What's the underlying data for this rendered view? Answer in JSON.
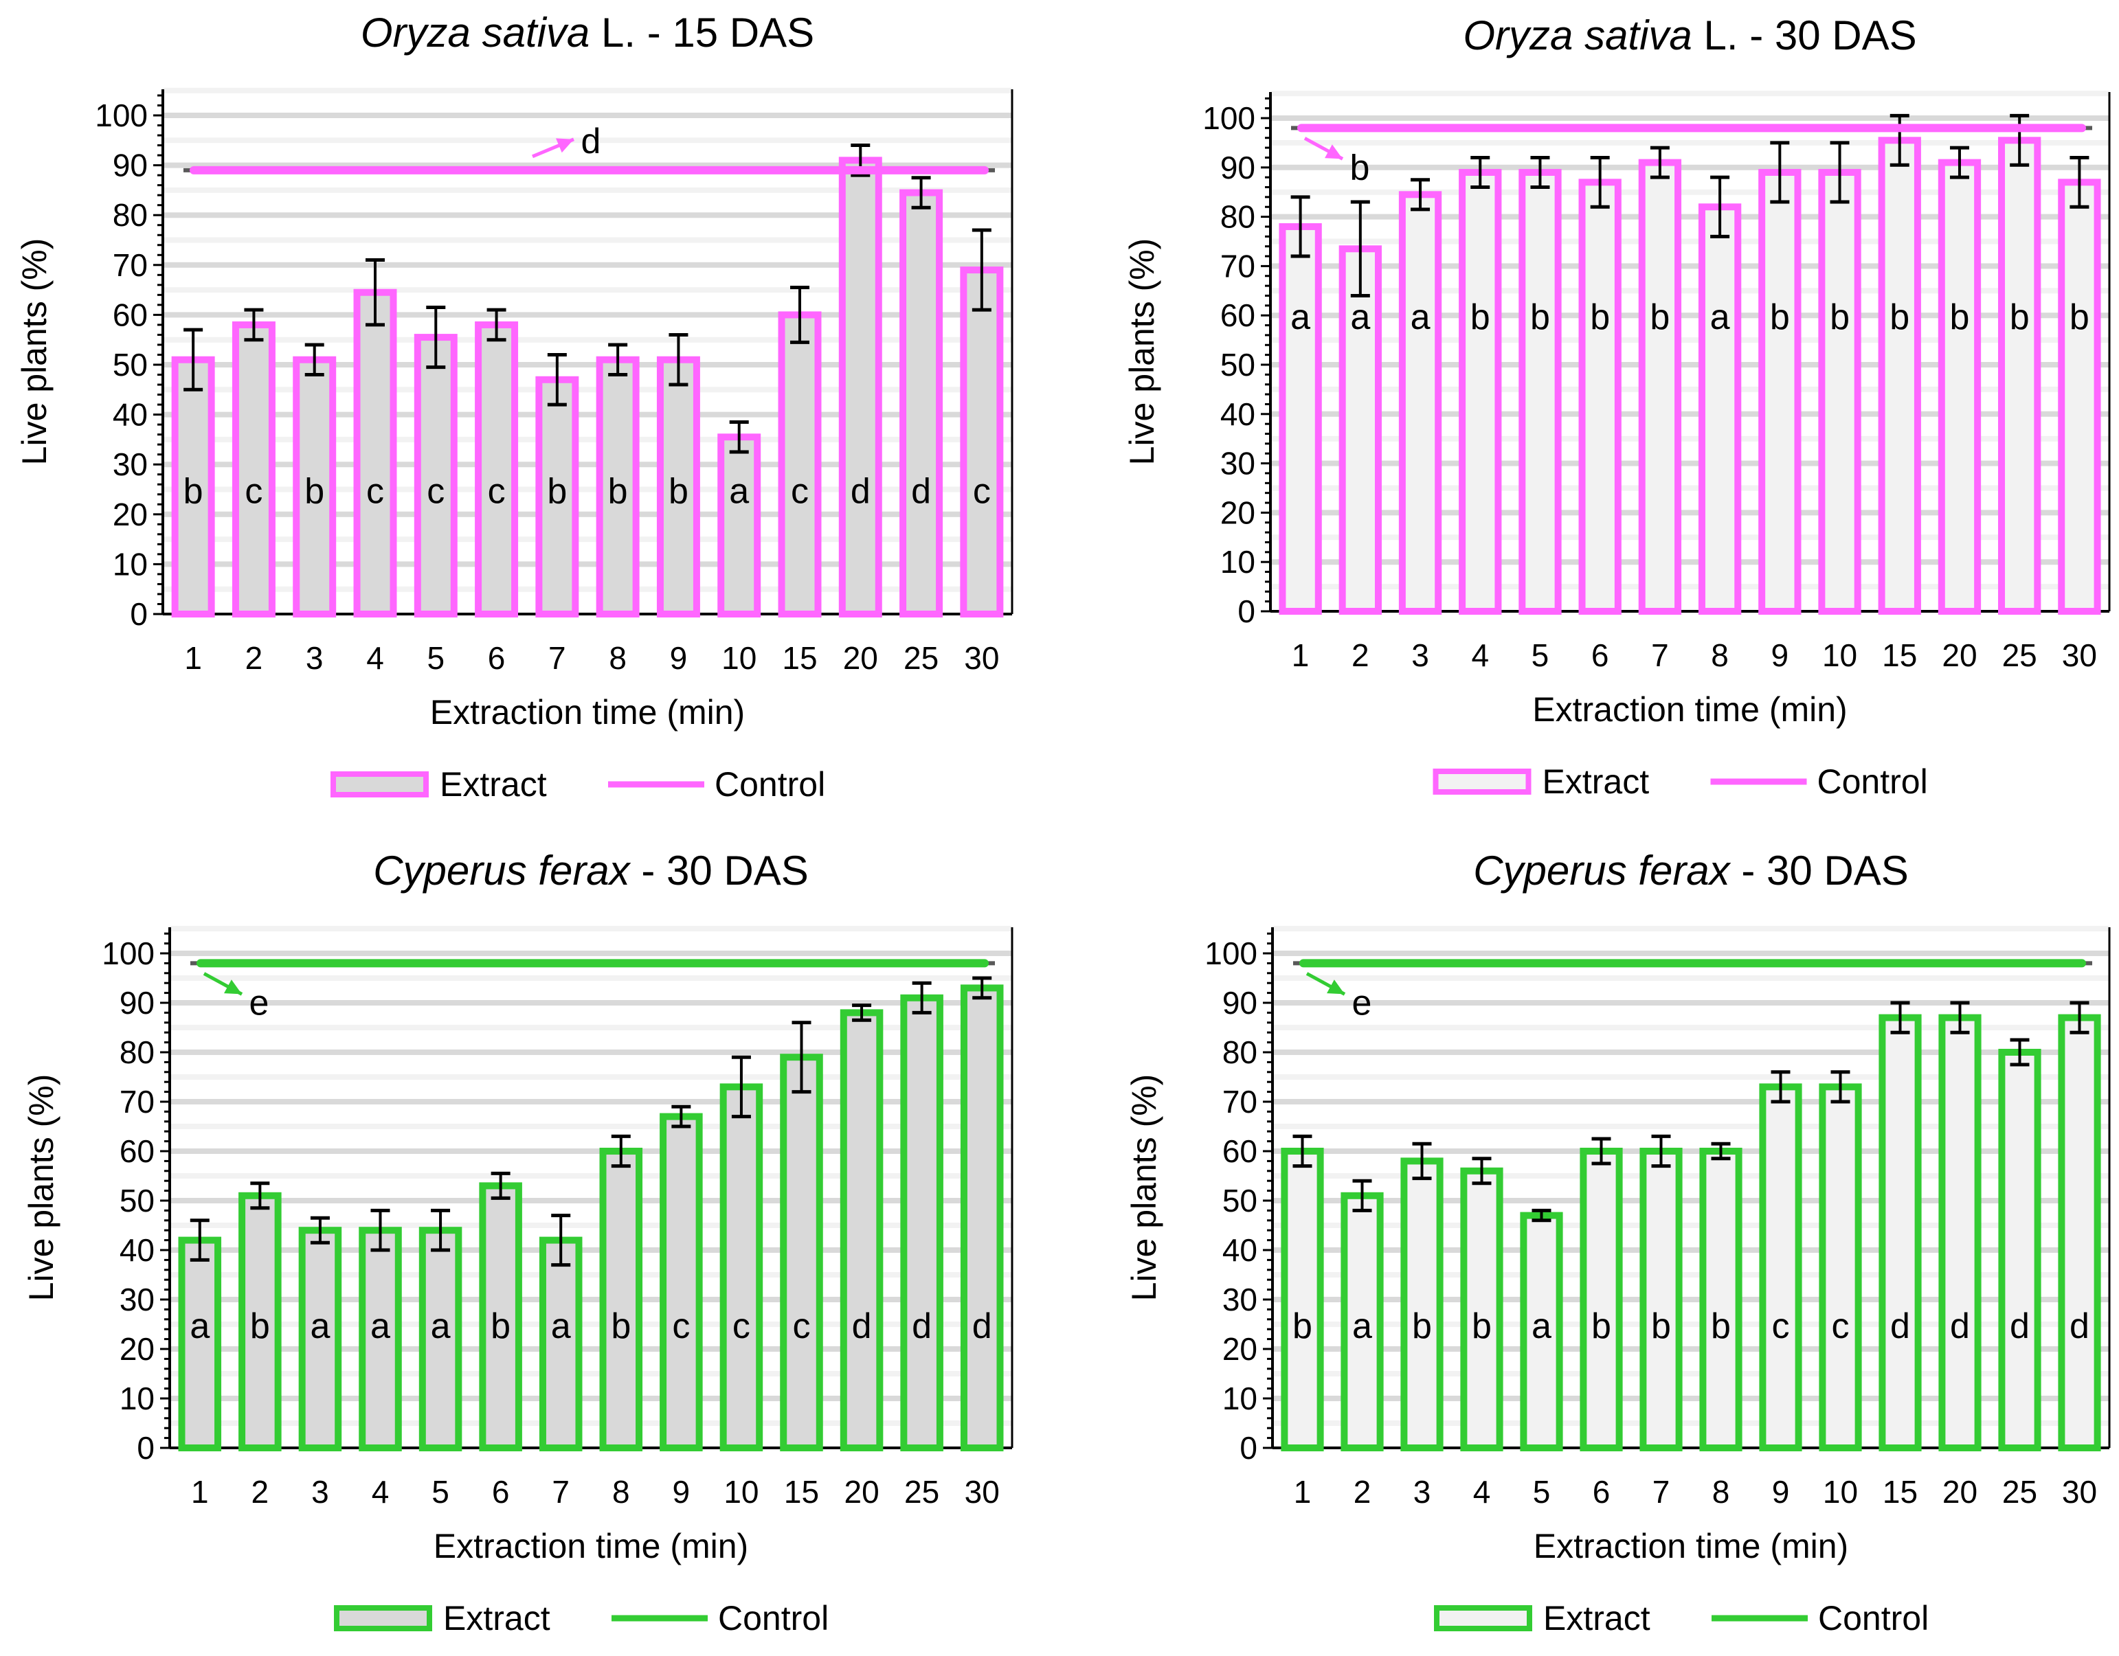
{
  "chart_data": [
    {
      "type": "bar",
      "title_species": "Oryza sativa",
      "title_suffix": " L. - 15 DAS",
      "xlabel": "Extraction time (min)",
      "ylabel": "Live plants (%)",
      "ylim": [
        0,
        100
      ],
      "yticks": [
        0,
        10,
        20,
        30,
        40,
        50,
        60,
        70,
        80,
        90,
        100
      ],
      "categories": [
        "1",
        "2",
        "3",
        "4",
        "5",
        "6",
        "7",
        "8",
        "9",
        "10",
        "15",
        "20",
        "25",
        "30"
      ],
      "values": [
        51,
        58,
        51,
        64.5,
        55.5,
        58,
        47,
        51,
        51,
        35.5,
        60,
        91,
        84.5,
        69
      ],
      "errors": [
        6,
        3,
        3,
        6.5,
        6,
        3,
        5,
        3,
        5,
        3,
        5.5,
        3,
        3,
        8
      ],
      "letters": [
        "b",
        "c",
        "b",
        "c",
        "c",
        "c",
        "b",
        "b",
        "b",
        "a",
        "c",
        "d",
        "d",
        "c"
      ],
      "control_value": 89,
      "control_letter": "d",
      "color": "#FF66FF",
      "fill": "#D9D9D9",
      "legend": [
        "Extract",
        "Control"
      ],
      "legend_placement": "bottom"
    },
    {
      "type": "bar",
      "title_species": "Oryza sativa",
      "title_suffix": " L. - 30 DAS",
      "xlabel": "Extraction time (min)",
      "ylabel": "Live plants (%)",
      "ylim": [
        0,
        100
      ],
      "yticks": [
        0,
        10,
        20,
        30,
        40,
        50,
        60,
        70,
        80,
        90,
        100
      ],
      "categories": [
        "1",
        "2",
        "3",
        "4",
        "5",
        "6",
        "7",
        "8",
        "9",
        "10",
        "15",
        "20",
        "25",
        "30"
      ],
      "values": [
        78,
        73.5,
        84.5,
        89,
        89,
        87,
        91,
        82,
        89,
        89,
        95.5,
        91,
        95.5,
        87
      ],
      "errors": [
        6,
        9.5,
        3,
        3,
        3,
        5,
        3,
        6,
        6,
        6,
        5,
        3,
        5,
        5
      ],
      "letters": [
        "a",
        "a",
        "a",
        "b",
        "b",
        "b",
        "b",
        "a",
        "b",
        "b",
        "b",
        "b",
        "b",
        "b"
      ],
      "control_value": 98,
      "control_letter": "b",
      "color": "#FF66FF",
      "fill": "#F2F2F2",
      "legend": [
        "Extract",
        "Control"
      ],
      "legend_placement": "bottom"
    },
    {
      "type": "bar",
      "title_species": "Cyperus ferax",
      "title_suffix": " - 30 DAS",
      "xlabel": "Extraction time (min)",
      "ylabel": "Live plants (%)",
      "ylim": [
        0,
        100
      ],
      "yticks": [
        0,
        10,
        20,
        30,
        40,
        50,
        60,
        70,
        80,
        90,
        100
      ],
      "categories": [
        "1",
        "2",
        "3",
        "4",
        "5",
        "6",
        "7",
        "8",
        "9",
        "10",
        "15",
        "20",
        "25",
        "30"
      ],
      "values": [
        42,
        51,
        44,
        44,
        44,
        53,
        42,
        60,
        67,
        73,
        79,
        88,
        91,
        93
      ],
      "errors": [
        4,
        2.5,
        2.5,
        4,
        4,
        2.5,
        5,
        3,
        2,
        6,
        7,
        1.5,
        3,
        2
      ],
      "letters": [
        "a",
        "b",
        "a",
        "a",
        "a",
        "b",
        "a",
        "b",
        "c",
        "c",
        "c",
        "d",
        "d",
        "d"
      ],
      "control_value": 98,
      "control_letter": "e",
      "color": "#33CC33",
      "fill": "#D9D9D9",
      "legend": [
        "Extract",
        "Control"
      ],
      "legend_placement": "bottom"
    },
    {
      "type": "bar",
      "title_species": "Cyperus ferax",
      "title_suffix": " - 30 DAS",
      "xlabel": "Extraction time (min)",
      "ylabel": "Live plants (%)",
      "ylim": [
        0,
        100
      ],
      "yticks": [
        0,
        10,
        20,
        30,
        40,
        50,
        60,
        70,
        80,
        90,
        100
      ],
      "categories": [
        "1",
        "2",
        "3",
        "4",
        "5",
        "6",
        "7",
        "8",
        "9",
        "10",
        "15",
        "20",
        "25",
        "30"
      ],
      "values": [
        60,
        51,
        58,
        56,
        47,
        60,
        60,
        60,
        73,
        73,
        87,
        87,
        80,
        87
      ],
      "errors": [
        3,
        3,
        3.5,
        2.5,
        1,
        2.5,
        3,
        1.5,
        3,
        3,
        3,
        3,
        2.5,
        3
      ],
      "letters": [
        "b",
        "a",
        "b",
        "b",
        "a",
        "b",
        "b",
        "b",
        "c",
        "c",
        "d",
        "d",
        "d",
        "d"
      ],
      "control_value": 98,
      "control_letter": "e",
      "color": "#33CC33",
      "fill": "#F2F2F2",
      "legend": [
        "Extract",
        "Control"
      ],
      "legend_placement": "bottom"
    }
  ]
}
